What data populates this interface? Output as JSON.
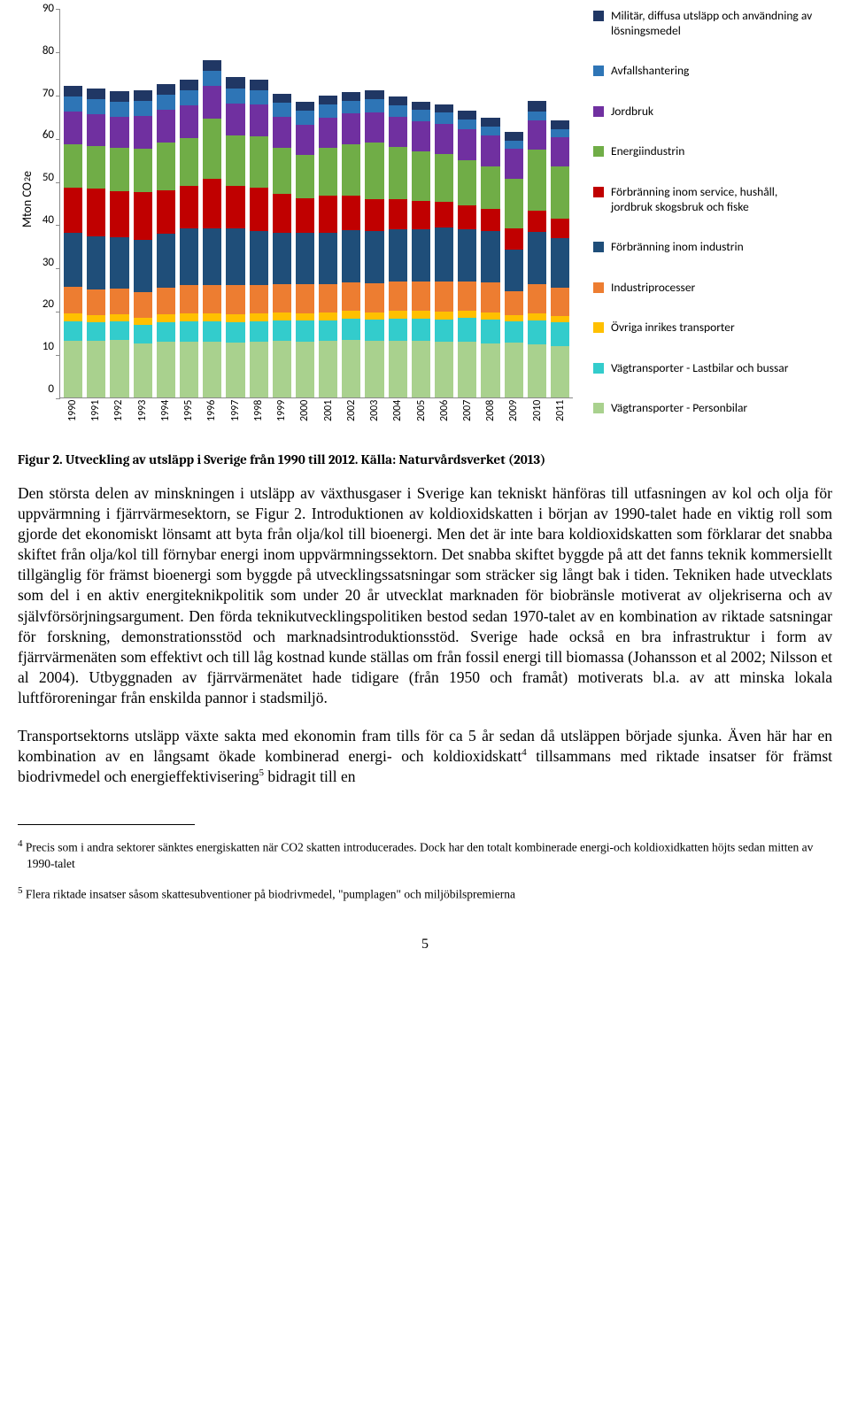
{
  "chart": {
    "type": "stacked-bar",
    "y_label": "Mton CO₂e",
    "ylim": [
      0,
      90
    ],
    "ytick_step": 10,
    "yticks": [
      "90",
      "80",
      "70",
      "60",
      "50",
      "40",
      "30",
      "20",
      "10",
      "0"
    ],
    "years": [
      "1990",
      "1991",
      "1992",
      "1993",
      "1994",
      "1995",
      "1996",
      "1997",
      "1998",
      "1999",
      "2000",
      "2001",
      "2002",
      "2003",
      "2004",
      "2005",
      "2006",
      "2007",
      "2008",
      "2009",
      "2010",
      "2011"
    ],
    "series": [
      {
        "name": "Militär, diffusa utsläpp och användning av lösningsmedel",
        "color": "#203764"
      },
      {
        "name": "Avfallshantering",
        "color": "#2e75b6"
      },
      {
        "name": "Jordbruk",
        "color": "#7030a0"
      },
      {
        "name": "Energiindustrin",
        "color": "#70ad47"
      },
      {
        "name": "Förbränning inom service, hushåll, jordbruk skogsbruk och fiske",
        "color": "#c00000"
      },
      {
        "name": "Förbränning inom industrin",
        "color": "#1f4e79"
      },
      {
        "name": "Industriprocesser",
        "color": "#ed7d31"
      },
      {
        "name": "Övriga inrikes transporter",
        "color": "#ffc000"
      },
      {
        "name": "Vägtransporter - Lastbilar och bussar",
        "color": "#33cccc"
      },
      {
        "name": "Vägtransporter - Personbilar",
        "color": "#a9d18e"
      }
    ],
    "values_by_series": [
      [
        2.5,
        2.5,
        2.5,
        2.5,
        2.5,
        2.5,
        2.5,
        2.5,
        2.5,
        2.0,
        2.0,
        2.0,
        2.0,
        2.0,
        2.0,
        2.0,
        2.0,
        2.0,
        2.0,
        2.0,
        2.5,
        2.0
      ],
      [
        3.5,
        3.5,
        3.5,
        3.5,
        3.5,
        3.5,
        3.5,
        3.5,
        3.3,
        3.3,
        3.2,
        3.2,
        3.0,
        3.0,
        2.8,
        2.5,
        2.5,
        2.3,
        2.2,
        2.0,
        2.0,
        1.8
      ],
      [
        7.5,
        7.3,
        7.2,
        7.5,
        7.5,
        7.5,
        7.5,
        7.5,
        7.3,
        7.2,
        7.0,
        7.0,
        7.0,
        7.0,
        7.0,
        7.0,
        7.0,
        7.0,
        7.0,
        6.8,
        6.8,
        6.8
      ],
      [
        10.0,
        10.0,
        10.0,
        10.0,
        11.0,
        11.0,
        14.0,
        11.5,
        12.0,
        10.5,
        10.0,
        11.0,
        12.0,
        13.0,
        12.0,
        11.5,
        11.0,
        10.5,
        10.0,
        11.5,
        14.0,
        12.0
      ],
      [
        10.5,
        11.0,
        10.5,
        11.0,
        10.0,
        10.0,
        11.5,
        10.0,
        10.0,
        9.0,
        8.0,
        8.5,
        8.0,
        7.5,
        7.0,
        6.5,
        6.0,
        5.5,
        5.0,
        5.0,
        5.0,
        4.5
      ],
      [
        12.5,
        12.3,
        12.0,
        12.2,
        12.5,
        13.0,
        13.0,
        13.0,
        12.5,
        12.0,
        12.0,
        12.0,
        12.0,
        12.0,
        12.0,
        12.0,
        12.5,
        12.0,
        12.0,
        9.5,
        12.0,
        11.5
      ],
      [
        6.0,
        5.8,
        5.8,
        5.8,
        6.2,
        6.5,
        6.5,
        6.8,
        6.5,
        6.5,
        6.6,
        6.5,
        6.6,
        6.7,
        6.8,
        6.8,
        6.9,
        6.8,
        6.8,
        5.5,
        6.8,
        6.5
      ],
      [
        2.0,
        1.8,
        1.8,
        1.8,
        1.9,
        1.9,
        2.0,
        1.8,
        1.8,
        1.8,
        1.8,
        1.8,
        1.8,
        1.7,
        1.8,
        1.8,
        1.8,
        1.7,
        1.7,
        1.5,
        1.6,
        1.6
      ],
      [
        4.5,
        4.3,
        4.3,
        4.2,
        4.5,
        4.7,
        4.6,
        4.7,
        4.8,
        4.8,
        4.9,
        4.8,
        5.0,
        5.0,
        5.2,
        5.3,
        5.3,
        5.5,
        5.5,
        5.0,
        5.5,
        5.5
      ],
      [
        13.0,
        13.0,
        13.2,
        12.5,
        12.8,
        12.9,
        12.9,
        12.7,
        12.8,
        13.0,
        12.8,
        13.0,
        13.2,
        13.0,
        13.0,
        13.0,
        12.8,
        12.9,
        12.5,
        12.6,
        12.3,
        11.8
      ]
    ]
  },
  "caption": "Figur 2. Utveckling av utsläpp i Sverige från 1990 till 2012. Källa: Naturvårdsverket (2013)",
  "para1": "Den största delen av minskningen i utsläpp av växthusgaser i Sverige kan tekniskt hänföras till utfasningen av kol och olja för uppvärmning i fjärrvärmesektorn, se Figur 2. Introduktionen av koldioxidskatten i början av 1990-talet hade en viktig roll som gjorde det ekonomiskt lönsamt att byta från olja/kol till bioenergi. Men det är inte bara koldioxidskatten som förklarar det snabba skiftet från olja/kol till förnybar energi inom uppvärmningssektorn. Det snabba skiftet byggde på att det fanns teknik kommersiellt tillgänglig för främst bioenergi som byggde på utvecklingssatsningar som sträcker sig långt bak i tiden. Tekniken hade utvecklats som del i en aktiv energiteknikpolitik som under 20 år utvecklat marknaden för biobränsle motiverat av oljekriserna och av självförsörjningsargument. Den förda teknikutvecklingspolitiken bestod sedan 1970-talet av en kombination av riktade satsningar för forskning, demonstrationsstöd och marknadsintroduktionsstöd. Sverige hade också en bra infrastruktur i form av fjärrvärmenäten som effektivt och till låg kostnad kunde ställas om från fossil energi till biomassa (Johansson et al 2002; Nilsson et al 2004). Utbyggnaden av fjärrvärmenätet hade tidigare (från 1950 och framåt) motiverats bl.a. av att minska lokala luftföroreningar från enskilda pannor i stadsmiljö.",
  "para2_a": "Transportsektorns utsläpp växte sakta med ekonomin fram tills för ca 5 år sedan då utsläppen började sjunka. Även här har en kombination av en långsamt ökade kombinerad energi- och koldioxidskatt",
  "para2_b": " tillsammans med riktade insatser för främst biodrivmedel och energieffektivisering",
  "para2_c": " bidragit till en",
  "fn4": "Precis som i andra sektorer sänktes energiskatten när CO2 skatten introducerades. Dock har den totalt kombinerade energi-och koldioxidkatten höjts sedan mitten av 1990-talet",
  "fn5": "Flera riktade insatser såsom skattesubventioner på biodrivmedel, \"pumplagen\" och miljöbilspremierna",
  "fn4_num": "4",
  "fn5_num": "5",
  "page": "5"
}
